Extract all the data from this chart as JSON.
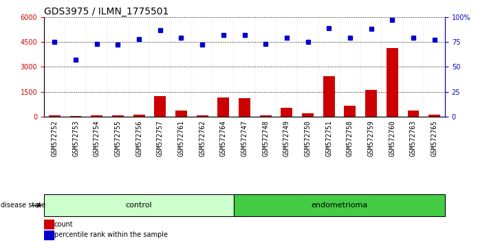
{
  "title": "GDS3975 / ILMN_1775501",
  "samples": [
    "GSM572752",
    "GSM572753",
    "GSM572754",
    "GSM572755",
    "GSM572756",
    "GSM572757",
    "GSM572761",
    "GSM572762",
    "GSM572764",
    "GSM572747",
    "GSM572748",
    "GSM572749",
    "GSM572750",
    "GSM572751",
    "GSM572758",
    "GSM572759",
    "GSM572760",
    "GSM572763",
    "GSM572765"
  ],
  "groups": [
    "control",
    "control",
    "control",
    "control",
    "control",
    "control",
    "control",
    "control",
    "control",
    "endometrioma",
    "endometrioma",
    "endometrioma",
    "endometrioma",
    "endometrioma",
    "endometrioma",
    "endometrioma",
    "endometrioma",
    "endometrioma",
    "endometrioma"
  ],
  "counts": [
    60,
    50,
    70,
    100,
    120,
    1220,
    350,
    60,
    1150,
    1100,
    60,
    550,
    200,
    2450,
    650,
    1600,
    4150,
    350,
    130
  ],
  "percentiles": [
    75,
    57,
    73,
    72,
    78,
    87,
    79,
    72,
    82,
    82,
    73,
    79,
    75,
    89,
    79,
    88,
    97,
    79,
    77
  ],
  "ylim_left": [
    0,
    6000
  ],
  "ylim_right": [
    0,
    100
  ],
  "yticks_left": [
    0,
    1500,
    3000,
    4500,
    6000
  ],
  "yticks_right": [
    0,
    25,
    50,
    75,
    100
  ],
  "bar_color": "#cc0000",
  "dot_color": "#0000cc",
  "control_color": "#ccffcc",
  "endometrioma_color": "#44cc44",
  "gray_color": "#c8c8c8",
  "title_fontsize": 10,
  "tick_fontsize": 7,
  "label_fontsize": 8,
  "n_control": 9,
  "n_endo": 10
}
